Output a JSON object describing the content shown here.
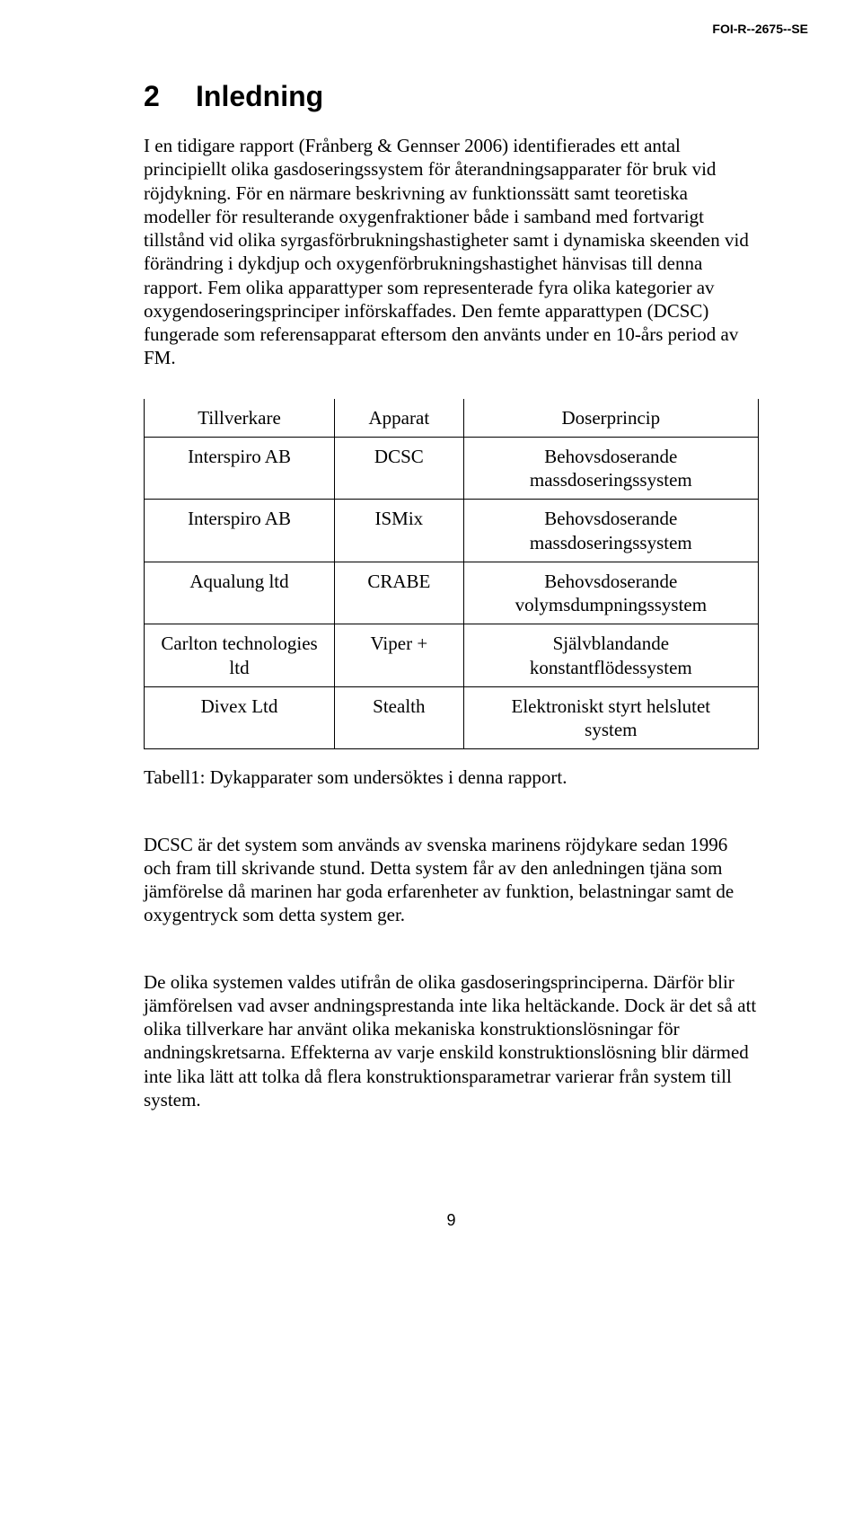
{
  "header": {
    "doc_id": "FOI-R--2675--SE"
  },
  "section": {
    "number": "2",
    "title": "Inledning"
  },
  "paragraphs": {
    "p1": "I en tidigare rapport (Frånberg & Gennser 2006) identifierades ett antal principiellt olika gasdoseringssystem för återandningsapparater för bruk vid röjdykning. För en närmare beskrivning av funktionssätt samt teoretiska modeller för resulterande oxygenfraktioner både i samband med fortvarigt tillstånd vid olika syrgasförbrukningshastigheter samt i dynamiska skeenden vid förändring i dykdjup och oxygenförbrukningshastighet hänvisas till denna rapport. Fem olika apparattyper som representerade fyra olika kategorier av oxygendoseringsprinciper införskaffades. Den femte apparattypen (DCSC) fungerade som referensapparat eftersom den använts under en 10-års period av FM.",
    "caption": "Tabell1: Dykapparater som undersöktes i denna rapport.",
    "p2": "DCSC är det system som används av svenska marinens röjdykare sedan 1996 och fram till skrivande stund. Detta system får av den anledningen tjäna som jämförelse då marinen har goda erfarenheter av funktion, belastningar samt de oxygentryck som detta system ger.",
    "p3": "De olika systemen valdes utifrån de olika gasdoseringsprinciperna. Därför blir jämförelsen vad avser andningsprestanda inte lika heltäckande. Dock är det så att olika tillverkare har använt olika mekaniska konstruktionslösningar för andningskretsarna. Effekterna av varje enskild konstruktionslösning blir därmed inte lika lätt att tolka då flera konstruktionsparametrar varierar från system till system."
  },
  "table": {
    "headers": {
      "c1": "Tillverkare",
      "c2": "Apparat",
      "c3": "Doserprincip"
    },
    "rows": [
      {
        "c1": "Interspiro AB",
        "c2": "DCSC",
        "c3a": "Behovsdoserande",
        "c3b": "massdoseringssystem"
      },
      {
        "c1": "Interspiro AB",
        "c2": "ISMix",
        "c3a": "Behovsdoserande",
        "c3b": "massdoseringssystem"
      },
      {
        "c1": "Aqualung ltd",
        "c2": "CRABE",
        "c3a": "Behovsdoserande",
        "c3b": "volymsdumpningssystem"
      },
      {
        "c1": "Carlton technologies ltd",
        "c2": "Viper +",
        "c3a": "Självblandande",
        "c3b": "konstantflödessystem"
      },
      {
        "c1": "Divex Ltd",
        "c2": "Stealth",
        "c3a": "Elektroniskt styrt helslutet",
        "c3b": "system"
      }
    ]
  },
  "footer": {
    "page_number": "9"
  }
}
